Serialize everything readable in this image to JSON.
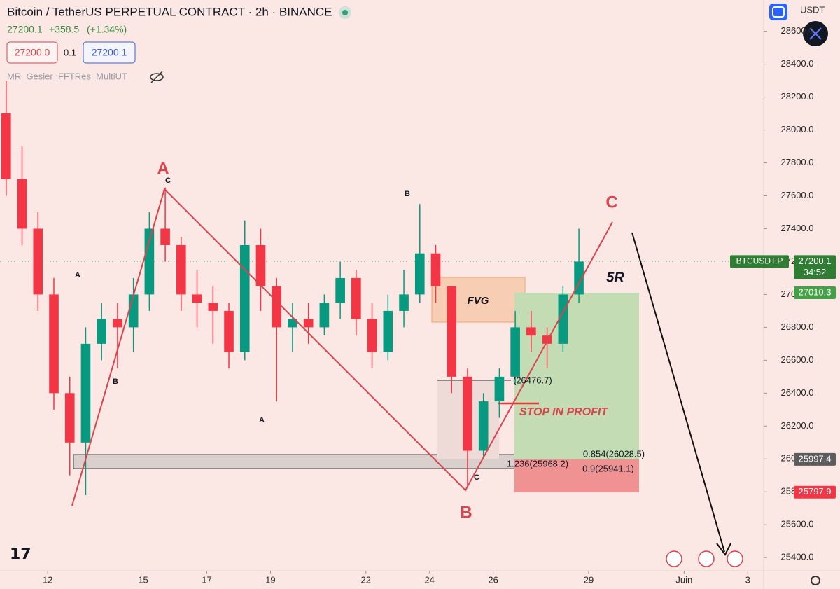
{
  "header": {
    "title": "Bitcoin / TetherUS PERPETUAL CONTRACT · 2h · BINANCE",
    "last": "27200.1",
    "change": "+358.5",
    "change_pct": "(+1.34%)",
    "bid": "27200.0",
    "spread": "0.1",
    "ask": "27200.1",
    "indicator": "MR_Gesier_FFTRes_MultiUT",
    "currency": "USDT"
  },
  "chart_data": {
    "type": "candlestick",
    "x": [
      10.5,
      11,
      11.5,
      12,
      12.5,
      13,
      13.5,
      14,
      14.5,
      15,
      15.5,
      16,
      16.5,
      17,
      17.5,
      18,
      18.5,
      19,
      19.5,
      20,
      20.5,
      21,
      21.5,
      22,
      22.5,
      23,
      23.5,
      24,
      24.5,
      25,
      25.5,
      26,
      26.5,
      27,
      27.5,
      28,
      28.5
    ],
    "open": [
      28100,
      27700,
      27400,
      27000,
      26400,
      26100,
      26700,
      26850,
      26800,
      27000,
      27400,
      27300,
      27000,
      26950,
      26900,
      26650,
      27300,
      27050,
      26800,
      26850,
      26800,
      26950,
      27100,
      26850,
      26650,
      26900,
      27000,
      27250,
      27050,
      26500,
      26050,
      26350,
      26500,
      26800,
      26750,
      26700,
      27000
    ],
    "high": [
      28300,
      27900,
      27500,
      27100,
      26500,
      26800,
      26950,
      26950,
      27100,
      27500,
      27650,
      27350,
      27150,
      27050,
      26950,
      27450,
      27400,
      27100,
      26950,
      26950,
      27000,
      27200,
      27150,
      26950,
      27000,
      27150,
      27550,
      27300,
      27050,
      26550,
      26400,
      26550,
      26900,
      26900,
      26800,
      27050,
      27400
    ],
    "low": [
      27600,
      27300,
      26900,
      26300,
      25900,
      25780,
      26600,
      26550,
      26650,
      26900,
      27200,
      26900,
      26800,
      26700,
      26550,
      26600,
      26900,
      26350,
      26650,
      26700,
      26750,
      26850,
      26750,
      26550,
      26600,
      26800,
      26950,
      26950,
      26400,
      25830,
      26000,
      26250,
      26450,
      26650,
      26550,
      26650,
      26950
    ],
    "close": [
      27700,
      27400,
      27000,
      26400,
      26100,
      26700,
      26850,
      26800,
      27000,
      27400,
      27300,
      27000,
      26950,
      26900,
      26650,
      27300,
      27050,
      26800,
      26850,
      26800,
      26950,
      27100,
      26850,
      26650,
      26900,
      27000,
      27250,
      27050,
      26500,
      26050,
      26350,
      26500,
      26800,
      26750,
      26700,
      27000,
      27200
    ],
    "up_color": "#089981",
    "down_color": "#f23645",
    "xlim": [
      10.5,
      34.5
    ],
    "xticks": [
      12,
      15,
      17,
      19,
      22,
      24,
      26,
      29,
      {
        "value": 32,
        "label": "Juin"
      },
      {
        "value": 34,
        "label": "3"
      }
    ],
    "ylim": [
      25320,
      28790
    ],
    "yticks": [
      {
        "value": 25400,
        "label": "25400.0"
      },
      {
        "value": 25600,
        "label": "25600.0"
      },
      {
        "value": 25800,
        "label": "25800.0"
      },
      {
        "value": 26000,
        "label": "26000.0"
      },
      {
        "value": 26200,
        "label": "26200.0"
      },
      {
        "value": 26400,
        "label": "26400.0"
      },
      {
        "value": 26600,
        "label": "26600.0"
      },
      {
        "value": 26800,
        "label": "26800.0"
      },
      {
        "value": 27000,
        "label": "27000.0"
      },
      {
        "value": 27200,
        "label": "27200.0"
      },
      {
        "value": 27400,
        "label": "27400.0"
      },
      {
        "value": 27600,
        "label": "27600.0"
      },
      {
        "value": 27800,
        "label": "27800.0"
      },
      {
        "value": 28000,
        "label": "28000.0"
      },
      {
        "value": 28200,
        "label": "28200.0"
      },
      {
        "value": 28400,
        "label": "28400.0"
      },
      {
        "value": 28600,
        "label": "28600.0"
      }
    ],
    "price_markers": [
      {
        "label": "BTCUSDT.P",
        "value": 27200.1,
        "countdown": "34:52",
        "color": "#2e7d32"
      },
      {
        "value": 27010.3,
        "color": "#43a047"
      },
      {
        "value": 25997.4,
        "color": "#5d5d5d"
      },
      {
        "value": 25797.9,
        "color": "#f23645"
      }
    ],
    "annotations": {
      "waves": [
        "A",
        "B",
        "C"
      ],
      "minor": [
        "C",
        "A",
        "B",
        "B",
        "A",
        "C"
      ],
      "labels": [
        "5R",
        "FVG",
        "STOP IN PROFIT"
      ],
      "fib": [
        "(26476.7)",
        "0.854(26028.5)",
        "1.236(25968.2)",
        "0.9(25941.1)"
      ]
    }
  }
}
